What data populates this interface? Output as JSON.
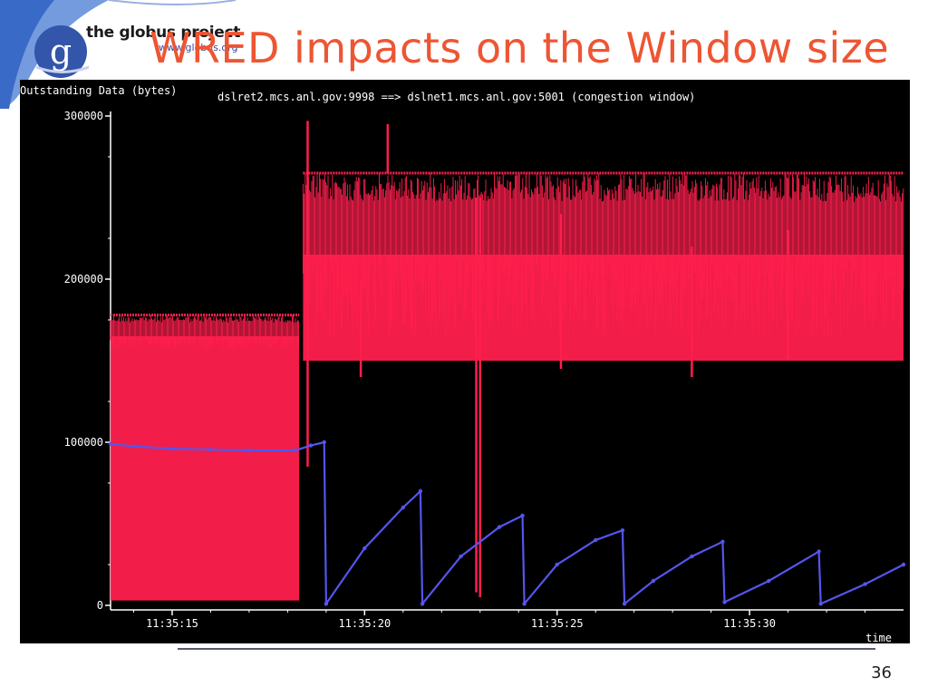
{
  "slide": {
    "title": "WRED impacts on the Window size",
    "page_number": "36",
    "brand": {
      "name": "the globus project",
      "url": "www.globus.org",
      "logo_letter": "g",
      "logo_color": "#3355aa",
      "accent": "#4a7ad0"
    }
  },
  "chart_data": {
    "type": "scatter",
    "title": "dslret2.mcs.anl.gov:9998 ==> dslnet1.mcs.anl.gov:5001 (congestion window)",
    "ylabel": "Outstanding Data (bytes)",
    "xlabel": "time",
    "ylim": [
      0,
      300000
    ],
    "xlim": [
      13.4,
      34.0
    ],
    "yticks": [
      {
        "value": 0,
        "label": "0"
      },
      {
        "value": 100000,
        "label": "100000"
      },
      {
        "value": 200000,
        "label": "200000"
      },
      {
        "value": 300000,
        "label": "300000"
      }
    ],
    "xticks": [
      {
        "value": 15,
        "label": "11:35:15"
      },
      {
        "value": 20,
        "label": "11:35:20"
      },
      {
        "value": 25,
        "label": "11:35:25"
      },
      {
        "value": 30,
        "label": "11:35:30"
      }
    ],
    "series": [
      {
        "color": "#ff1f4d",
        "mode": "outstanding",
        "segments": [
          {
            "x0": 13.4,
            "x1": 18.3,
            "low": 3000,
            "base": 165000,
            "high": 178000
          },
          {
            "x0": 18.4,
            "x1": 34.0,
            "low": 150000,
            "base": 215000,
            "high": 265000
          }
        ],
        "spikes": [
          {
            "x": 18.52,
            "y_top": 297000,
            "y_bottom": 85000
          },
          {
            "x": 20.6,
            "y_top": 295000,
            "y_bottom": 265000
          },
          {
            "x": 23.0,
            "y_top": 250000,
            "y_bottom": 5000
          },
          {
            "x": 22.9,
            "y_top": 250000,
            "y_bottom": 8000
          },
          {
            "x": 19.9,
            "y_top": 200000,
            "y_bottom": 140000
          },
          {
            "x": 25.1,
            "y_top": 240000,
            "y_bottom": 145000
          },
          {
            "x": 28.5,
            "y_top": 220000,
            "y_bottom": 140000
          },
          {
            "x": 31.0,
            "y_top": 230000,
            "y_bottom": 150000
          }
        ]
      },
      {
        "color": "#5555ee",
        "mode": "cwnd",
        "points": [
          [
            13.4,
            99000
          ],
          [
            14.0,
            97500
          ],
          [
            15.0,
            96000
          ],
          [
            16.0,
            95500
          ],
          [
            17.0,
            95000
          ],
          [
            18.2,
            95000
          ],
          [
            18.6,
            98000
          ],
          [
            18.95,
            100000
          ],
          [
            19.0,
            1000
          ],
          [
            20.0,
            35000
          ],
          [
            21.0,
            60000
          ],
          [
            21.45,
            70000
          ],
          [
            21.5,
            1000
          ],
          [
            22.5,
            30000
          ],
          [
            23.5,
            48000
          ],
          [
            24.1,
            55000
          ],
          [
            24.15,
            1000
          ],
          [
            25.0,
            25000
          ],
          [
            26.0,
            40000
          ],
          [
            26.7,
            46000
          ],
          [
            26.75,
            1000
          ],
          [
            27.5,
            15000
          ],
          [
            28.5,
            30000
          ],
          [
            29.3,
            39000
          ],
          [
            29.35,
            2000
          ],
          [
            30.5,
            15000
          ],
          [
            31.8,
            33000
          ],
          [
            31.85,
            1000
          ],
          [
            33.0,
            13000
          ],
          [
            34.0,
            25000
          ]
        ]
      }
    ]
  }
}
